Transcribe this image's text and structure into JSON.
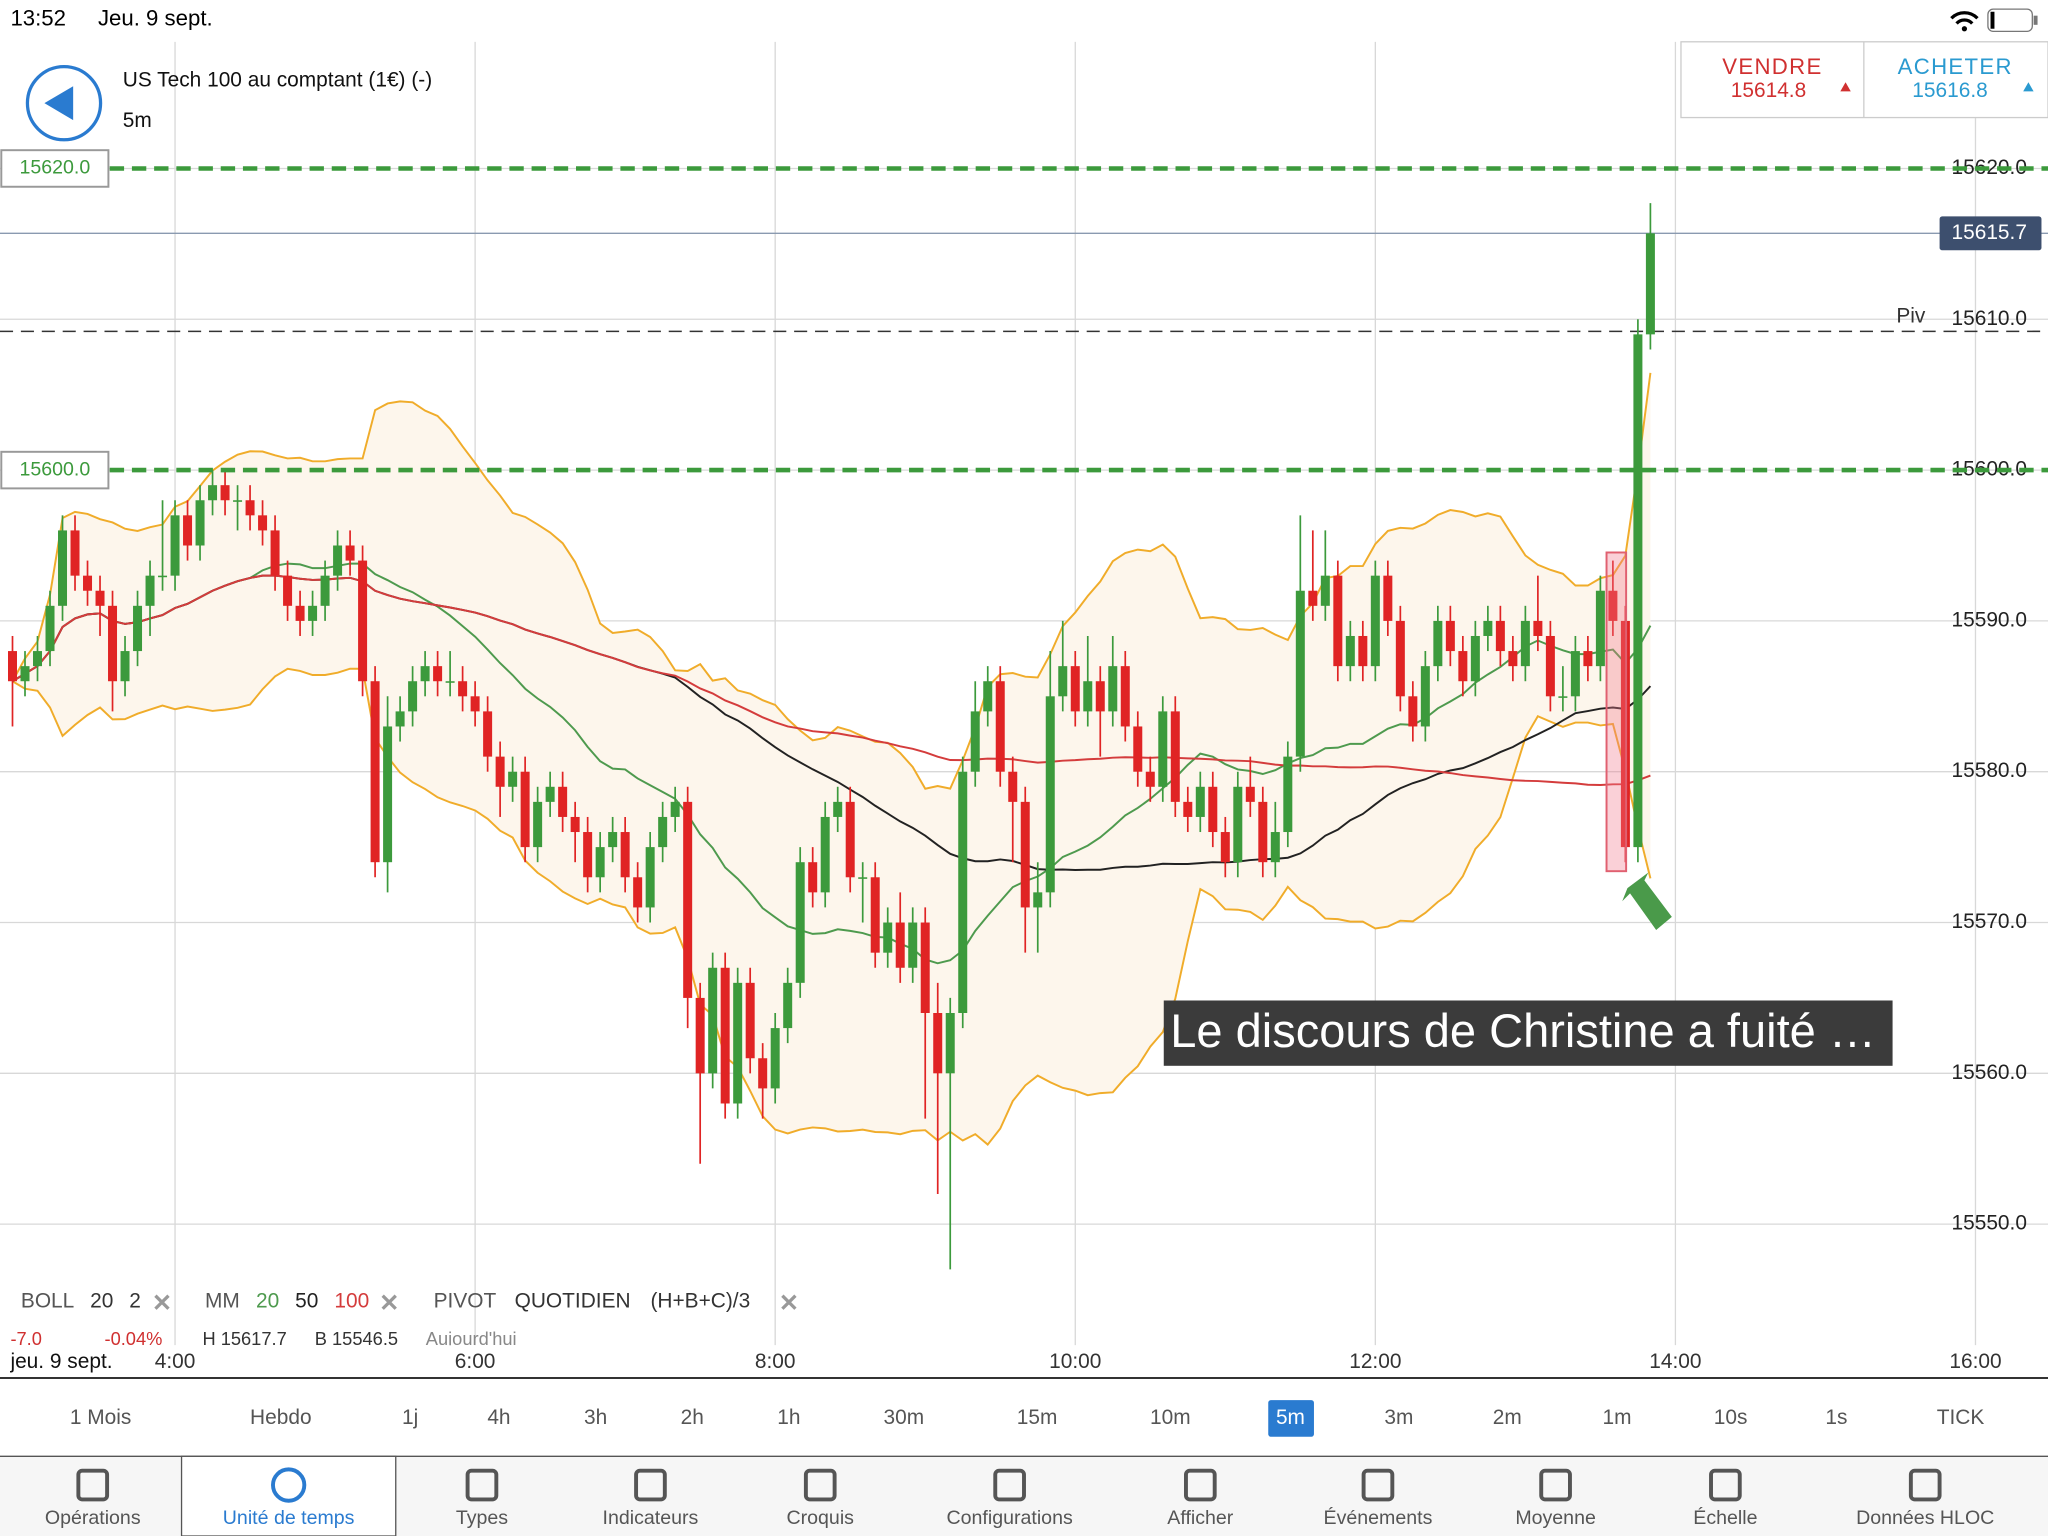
{
  "status_bar": {
    "time": "13:52",
    "date": "Jeu. 9 sept."
  },
  "header": {
    "instrument": "US Tech 100 au comptant (1€) (-)",
    "interval": "5m"
  },
  "quote": {
    "sell_label": "VENDRE",
    "sell_price": "15614.8",
    "buy_label": "ACHETER",
    "buy_price": "15616.8"
  },
  "chart_data": {
    "type": "candlestick",
    "x": [
      "2:55",
      "3:00",
      "3:05",
      "3:10",
      "3:15",
      "3:20",
      "3:25",
      "3:30",
      "3:35",
      "3:40",
      "3:45",
      "3:50",
      "3:55",
      "4:00",
      "4:05",
      "4:10",
      "4:15",
      "4:20",
      "4:25",
      "4:30",
      "4:35",
      "4:40",
      "4:45",
      "4:50",
      "4:55",
      "5:00",
      "5:05",
      "5:10",
      "5:15",
      "5:20",
      "5:25",
      "5:30",
      "5:35",
      "5:40",
      "5:45",
      "5:50",
      "5:55",
      "6:00",
      "6:05",
      "6:10",
      "6:15",
      "6:20",
      "6:25",
      "6:30",
      "6:35",
      "6:40",
      "6:45",
      "6:50",
      "6:55",
      "7:00",
      "7:05",
      "7:10",
      "7:15",
      "7:20",
      "7:25",
      "7:30",
      "7:35",
      "7:40",
      "7:45",
      "7:50",
      "7:55",
      "8:00",
      "8:05",
      "8:10",
      "8:15",
      "8:20",
      "8:25",
      "8:30",
      "8:35",
      "8:40",
      "8:45",
      "8:50",
      "8:55",
      "9:00",
      "9:05",
      "9:10",
      "9:15",
      "9:20",
      "9:25",
      "9:30",
      "9:35",
      "9:40",
      "9:45",
      "9:50",
      "9:55",
      "10:00",
      "10:05",
      "10:10",
      "10:15",
      "10:20",
      "10:25",
      "10:30",
      "10:35",
      "10:40",
      "10:45",
      "10:50",
      "10:55",
      "11:00",
      "11:05",
      "11:10",
      "11:15",
      "11:20",
      "11:25",
      "11:30",
      "11:35",
      "11:40",
      "11:45",
      "11:50",
      "11:55",
      "12:00",
      "12:05",
      "12:10",
      "12:15",
      "12:20",
      "12:25",
      "12:30",
      "12:35",
      "12:40",
      "12:45",
      "12:50",
      "12:55",
      "13:00",
      "13:05",
      "13:10",
      "13:15",
      "13:20",
      "13:25",
      "13:30",
      "13:35",
      "13:40",
      "13:45",
      "13:50"
    ],
    "candles": [
      [
        15588,
        15589,
        15583,
        15586
      ],
      [
        15586,
        15588,
        15585,
        15587
      ],
      [
        15587,
        15589,
        15586,
        15588
      ],
      [
        15588,
        15592,
        15587,
        15591
      ],
      [
        15591,
        15597,
        15590,
        15596
      ],
      [
        15596,
        15597,
        15592,
        15593
      ],
      [
        15593,
        15594,
        15591,
        15592
      ],
      [
        15592,
        15593,
        15589,
        15591
      ],
      [
        15591,
        15592,
        15584,
        15586
      ],
      [
        15586,
        15589,
        15585,
        15588
      ],
      [
        15588,
        15592,
        15587,
        15591
      ],
      [
        15591,
        15594,
        15589,
        15593
      ],
      [
        15593,
        15598,
        15592,
        15593
      ],
      [
        15593,
        15598,
        15592,
        15597
      ],
      [
        15597,
        15598,
        15594,
        15595
      ],
      [
        15595,
        15599,
        15594,
        15598
      ],
      [
        15598,
        15600,
        15597,
        15599
      ],
      [
        15599,
        15600,
        15597,
        15598
      ],
      [
        15598,
        15599,
        15596,
        15598
      ],
      [
        15598,
        15599,
        15596,
        15597
      ],
      [
        15597,
        15598,
        15595,
        15596
      ],
      [
        15596,
        15597,
        15592,
        15593
      ],
      [
        15593,
        15594,
        15590,
        15591
      ],
      [
        15591,
        15592,
        15589,
        15590
      ],
      [
        15590,
        15592,
        15589,
        15591
      ],
      [
        15591,
        15594,
        15590,
        15593
      ],
      [
        15593,
        15596,
        15592,
        15595
      ],
      [
        15595,
        15596,
        15593,
        15594
      ],
      [
        15594,
        15595,
        15585,
        15586
      ],
      [
        15586,
        15587,
        15573,
        15574
      ],
      [
        15574,
        15585,
        15572,
        15583
      ],
      [
        15583,
        15585,
        15582,
        15584
      ],
      [
        15584,
        15587,
        15583,
        15586
      ],
      [
        15586,
        15588,
        15585,
        15587
      ],
      [
        15587,
        15588,
        15585,
        15586
      ],
      [
        15586,
        15588,
        15585,
        15586
      ],
      [
        15586,
        15587,
        15584,
        15585
      ],
      [
        15585,
        15586,
        15583,
        15584
      ],
      [
        15584,
        15585,
        15580,
        15581
      ],
      [
        15581,
        15582,
        15577,
        15579
      ],
      [
        15579,
        15581,
        15578,
        15580
      ],
      [
        15580,
        15581,
        15574,
        15575
      ],
      [
        15575,
        15579,
        15574,
        15578
      ],
      [
        15578,
        15580,
        15577,
        15579
      ],
      [
        15579,
        15580,
        15576,
        15577
      ],
      [
        15577,
        15578,
        15574,
        15576
      ],
      [
        15576,
        15577,
        15572,
        15573
      ],
      [
        15573,
        15576,
        15572,
        15575
      ],
      [
        15575,
        15577,
        15574,
        15576
      ],
      [
        15576,
        15577,
        15572,
        15573
      ],
      [
        15573,
        15574,
        15570,
        15571
      ],
      [
        15571,
        15576,
        15570,
        15575
      ],
      [
        15575,
        15578,
        15574,
        15577
      ],
      [
        15577,
        15579,
        15576,
        15578
      ],
      [
        15578,
        15579,
        15563,
        15565
      ],
      [
        15565,
        15566,
        15554,
        15560
      ],
      [
        15560,
        15568,
        15559,
        15567
      ],
      [
        15567,
        15568,
        15557,
        15558
      ],
      [
        15558,
        15567,
        15557,
        15566
      ],
      [
        15566,
        15567,
        15560,
        15561
      ],
      [
        15561,
        15562,
        15557,
        15559
      ],
      [
        15559,
        15564,
        15558,
        15563
      ],
      [
        15563,
        15567,
        15562,
        15566
      ],
      [
        15566,
        15575,
        15565,
        15574
      ],
      [
        15574,
        15575,
        15571,
        15572
      ],
      [
        15572,
        15578,
        15571,
        15577
      ],
      [
        15577,
        15579,
        15576,
        15578
      ],
      [
        15578,
        15579,
        15572,
        15573
      ],
      [
        15573,
        15574,
        15570,
        15573
      ],
      [
        15573,
        15574,
        15567,
        15568
      ],
      [
        15568,
        15571,
        15567,
        15570
      ],
      [
        15570,
        15572,
        15566,
        15567
      ],
      [
        15567,
        15571,
        15566,
        15570
      ],
      [
        15570,
        15571,
        15557,
        15564
      ],
      [
        15564,
        15566,
        15552,
        15560
      ],
      [
        15560,
        15565,
        15547,
        15564
      ],
      [
        15564,
        15581,
        15563,
        15580
      ],
      [
        15580,
        15586,
        15579,
        15584
      ],
      [
        15584,
        15587,
        15583,
        15586
      ],
      [
        15586,
        15587,
        15579,
        15580
      ],
      [
        15580,
        15581,
        15574,
        15578
      ],
      [
        15578,
        15579,
        15568,
        15571
      ],
      [
        15571,
        15574,
        15568,
        15572
      ],
      [
        15572,
        15588,
        15571,
        15585
      ],
      [
        15585,
        15590,
        15584,
        15587
      ],
      [
        15587,
        15588,
        15583,
        15584
      ],
      [
        15584,
        15589,
        15583,
        15586
      ],
      [
        15586,
        15587,
        15581,
        15584
      ],
      [
        15584,
        15589,
        15583,
        15587
      ],
      [
        15587,
        15588,
        15582,
        15583
      ],
      [
        15583,
        15584,
        15579,
        15580
      ],
      [
        15580,
        15581,
        15578,
        15579
      ],
      [
        15579,
        15585,
        15578,
        15584
      ],
      [
        15584,
        15585,
        15577,
        15578
      ],
      [
        15578,
        15579,
        15576,
        15577
      ],
      [
        15577,
        15580,
        15576,
        15579
      ],
      [
        15579,
        15580,
        15575,
        15576
      ],
      [
        15576,
        15577,
        15573,
        15574
      ],
      [
        15574,
        15580,
        15573,
        15579
      ],
      [
        15579,
        15581,
        15577,
        15578
      ],
      [
        15578,
        15579,
        15573,
        15574
      ],
      [
        15574,
        15578,
        15573,
        15576
      ],
      [
        15576,
        15582,
        15575,
        15581
      ],
      [
        15581,
        15597,
        15580,
        15592
      ],
      [
        15592,
        15596,
        15590,
        15591
      ],
      [
        15591,
        15596,
        15590,
        15593
      ],
      [
        15593,
        15594,
        15586,
        15587
      ],
      [
        15587,
        15590,
        15586,
        15589
      ],
      [
        15589,
        15590,
        15586,
        15587
      ],
      [
        15587,
        15594,
        15586,
        15593
      ],
      [
        15593,
        15594,
        15589,
        15590
      ],
      [
        15590,
        15591,
        15584,
        15585
      ],
      [
        15585,
        15586,
        15582,
        15583
      ],
      [
        15583,
        15588,
        15582,
        15587
      ],
      [
        15587,
        15591,
        15586,
        15590
      ],
      [
        15590,
        15591,
        15587,
        15588
      ],
      [
        15588,
        15589,
        15585,
        15586
      ],
      [
        15586,
        15590,
        15585,
        15589
      ],
      [
        15589,
        15591,
        15588,
        15590
      ],
      [
        15590,
        15591,
        15587,
        15588
      ],
      [
        15588,
        15589,
        15586,
        15587
      ],
      [
        15587,
        15591,
        15586,
        15590
      ],
      [
        15590,
        15593,
        15588,
        15589
      ],
      [
        15589,
        15590,
        15584,
        15585
      ],
      [
        15585,
        15587,
        15584,
        15585
      ],
      [
        15585,
        15589,
        15584,
        15588
      ],
      [
        15588,
        15589,
        15586,
        15587
      ],
      [
        15587,
        15593,
        15586,
        15592
      ],
      [
        15592,
        15594,
        15589,
        15590
      ],
      [
        15590,
        15591,
        15574,
        15575
      ],
      [
        15575,
        15610,
        15574,
        15609
      ],
      [
        15609,
        15617.7,
        15608,
        15615.7
      ]
    ],
    "up_color": "#3c9a3c",
    "down_color": "#e02424",
    "xlim": [
      "2:50",
      "16:29"
    ],
    "xticks": [
      "4:00",
      "6:00",
      "8:00",
      "10:00",
      "12:00",
      "14:00",
      "16:00"
    ],
    "x_date": "jeu. 9 sept.",
    "ylim": [
      15539.8,
      15628.4
    ],
    "yticks": [
      {
        "value": 15550,
        "label": "15550.0"
      },
      {
        "value": 15560,
        "label": "15560.0"
      },
      {
        "value": 15570,
        "label": "15570.0"
      },
      {
        "value": 15580,
        "label": "15580.0"
      },
      {
        "value": 15590,
        "label": "15590.0"
      },
      {
        "value": 15600,
        "label": "15600.0"
      },
      {
        "value": 15610,
        "label": "15610.0"
      },
      {
        "value": 15620,
        "label": "15620.0"
      }
    ],
    "grid": true,
    "levels": [
      {
        "value": 15620,
        "label": "15620.0"
      },
      {
        "value": 15600,
        "label": "15600.0"
      }
    ],
    "level_color": "#3c9a3c",
    "last_price": {
      "value": 15615.7,
      "label": "15615.7"
    },
    "pivot": {
      "value": 15609.2,
      "label": "Piv"
    },
    "annotation": "Le discours de Christine a fuité …"
  },
  "indicators": {
    "boll": {
      "name": "BOLL",
      "period": 20,
      "mult": 2,
      "color": "#f0ac2a",
      "fill": "#fdf6ec"
    },
    "mm": {
      "name": "MM",
      "periods": [
        20,
        50,
        100
      ],
      "colors": [
        "#4e9a4e",
        "#222222",
        "#d43c3c"
      ]
    },
    "pivot": {
      "name": "PIVOT",
      "mode": "QUOTIDIEN",
      "formula": "(H+B+C)/3"
    },
    "stats": {
      "change": "-7.0",
      "change_pct": "-0.04%",
      "high": "H 15617.7",
      "low": "B 15546.5",
      "period": "Aujourd'hui"
    }
  },
  "timeframes": {
    "items": [
      "1 Mois",
      "Hebdo",
      "1j",
      "4h",
      "3h",
      "2h",
      "1h",
      "30m",
      "15m",
      "10m",
      "5m",
      "3m",
      "2m",
      "1m",
      "10s",
      "1s",
      "TICK"
    ],
    "selected_index": 10
  },
  "toolbar": {
    "items": [
      "Opérations",
      "Unité de temps",
      "Types",
      "Indicateurs",
      "Croquis",
      "Configurations",
      "Afficher",
      "Événements",
      "Moyenne",
      "Échelle",
      "Données HLOC"
    ],
    "selected_index": 1
  }
}
